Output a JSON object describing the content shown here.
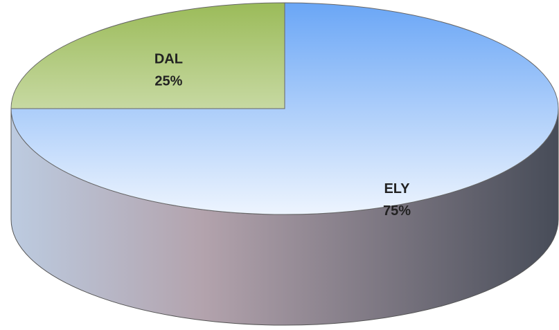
{
  "chart_data": {
    "type": "pie",
    "three_d": true,
    "categories": [
      "ELY",
      "DAL"
    ],
    "values": [
      75,
      25
    ],
    "value_labels": [
      "75%",
      "25%"
    ],
    "colors": [
      "#6aa6f6",
      "#9bbb59"
    ],
    "start_angle": 90,
    "direction": "clockwise"
  }
}
